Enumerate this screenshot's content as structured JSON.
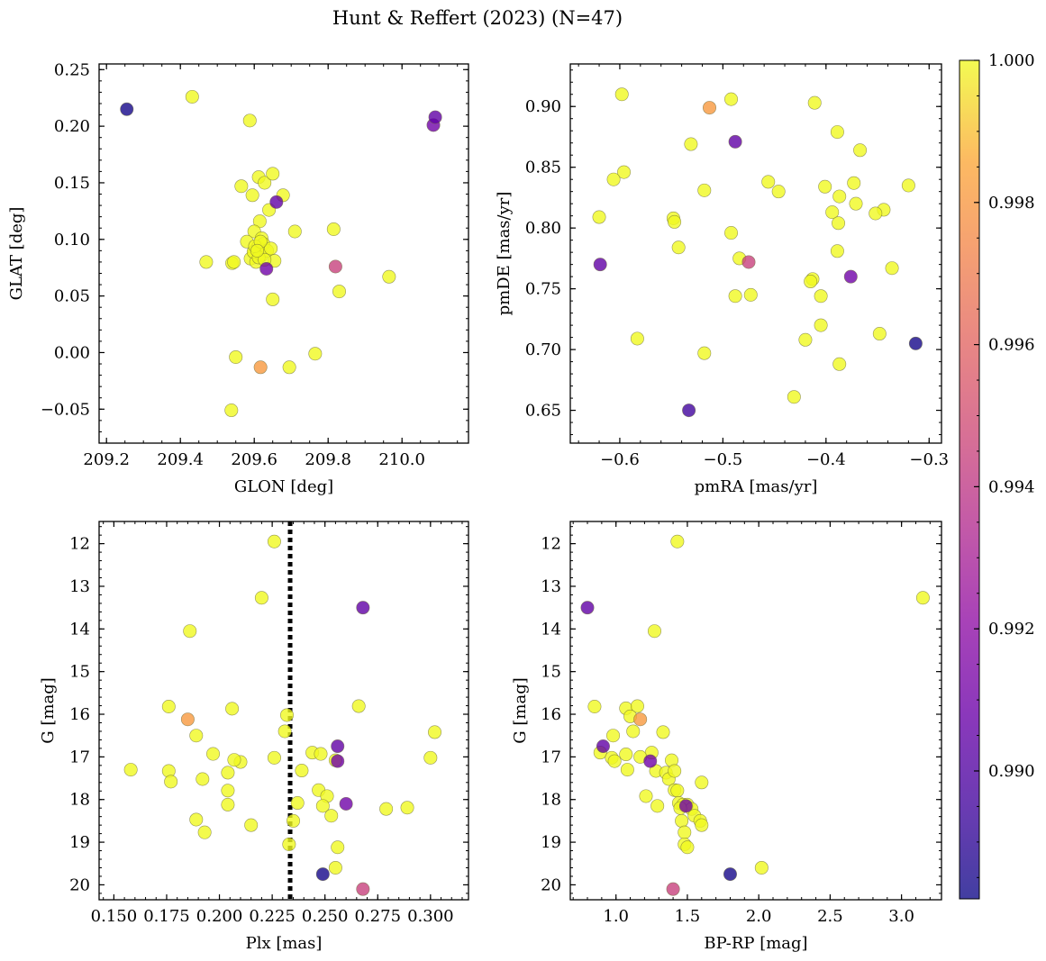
{
  "figure": {
    "title": "Hunt & Reffert (2023) (N=47)"
  },
  "colorbar": {
    "min": 0.9882,
    "max": 1.0,
    "ticks": [
      0.99,
      0.992,
      0.994,
      0.996,
      0.998,
      1.0
    ],
    "tick_labels": [
      "0.990",
      "0.992",
      "0.994",
      "0.996",
      "0.998",
      "1.000"
    ],
    "colormap": "plasma"
  },
  "chart_data": [
    {
      "type": "scatter",
      "title": "",
      "xlabel": "GLON [deg]",
      "ylabel": "GLAT [deg]",
      "xlim": [
        209.18,
        210.18
      ],
      "ylim": [
        -0.08,
        0.255
      ],
      "xticks": [
        209.2,
        209.4,
        209.6,
        209.8,
        210.0
      ],
      "xtick_labels": [
        "209.2",
        "209.4",
        "209.6",
        "209.8",
        "210.0"
      ],
      "xminor": 0.05,
      "yticks": [
        -0.05,
        0.0,
        0.05,
        0.1,
        0.15,
        0.2,
        0.25
      ],
      "ytick_labels": [
        "−0.05",
        "0.00",
        "0.05",
        "0.10",
        "0.15",
        "0.20",
        "0.25"
      ],
      "yminor": 0.01,
      "invert_y": false,
      "points": [
        [
          209.255,
          0.215,
          0.9884
        ],
        [
          209.432,
          0.226,
          1.0
        ],
        [
          209.588,
          0.205,
          1.0
        ],
        [
          209.66,
          0.133,
          0.9905
        ],
        [
          209.82,
          0.076,
          0.9945
        ],
        [
          209.633,
          0.074,
          0.991
        ],
        [
          209.617,
          -0.013,
          0.9982
        ],
        [
          210.085,
          0.201,
          0.991
        ],
        [
          210.09,
          0.208,
          0.9905
        ],
        [
          209.47,
          0.08,
          1.0
        ],
        [
          209.54,
          0.079,
          1.0
        ],
        [
          209.545,
          0.08,
          1.0
        ],
        [
          209.55,
          -0.004,
          1.0
        ],
        [
          209.538,
          -0.051,
          1.0
        ],
        [
          209.565,
          0.147,
          1.0
        ],
        [
          209.595,
          0.139,
          1.0
        ],
        [
          209.612,
          0.155,
          1.0
        ],
        [
          209.628,
          0.15,
          1.0
        ],
        [
          209.65,
          0.158,
          1.0
        ],
        [
          209.678,
          0.139,
          1.0
        ],
        [
          209.64,
          0.126,
          1.0
        ],
        [
          209.615,
          0.116,
          1.0
        ],
        [
          209.6,
          0.107,
          1.0
        ],
        [
          209.58,
          0.098,
          1.0
        ],
        [
          209.62,
          0.101,
          1.0
        ],
        [
          209.61,
          0.093,
          1.0
        ],
        [
          209.625,
          0.096,
          1.0
        ],
        [
          209.6,
          0.088,
          1.0
        ],
        [
          209.59,
          0.083,
          1.0
        ],
        [
          209.605,
          0.08,
          1.0
        ],
        [
          209.62,
          0.086,
          1.0
        ],
        [
          209.635,
          0.09,
          1.0
        ],
        [
          209.645,
          0.092,
          1.0
        ],
        [
          209.655,
          0.081,
          1.0
        ],
        [
          209.65,
          0.047,
          1.0
        ],
        [
          209.71,
          0.107,
          1.0
        ],
        [
          209.815,
          0.109,
          1.0
        ],
        [
          209.83,
          0.054,
          1.0
        ],
        [
          209.965,
          0.067,
          1.0
        ],
        [
          209.765,
          -0.001,
          1.0
        ],
        [
          209.695,
          -0.013,
          1.0
        ],
        [
          209.598,
          0.089,
          1.0
        ],
        [
          209.612,
          0.084,
          1.0
        ],
        [
          209.628,
          0.082,
          1.0
        ],
        [
          209.602,
          0.094,
          1.0
        ],
        [
          209.617,
          0.098,
          1.0
        ],
        [
          209.608,
          0.09,
          1.0
        ]
      ]
    },
    {
      "type": "scatter",
      "title": "",
      "xlabel": "pmRA [mas/yr]",
      "ylabel": "pmDE [mas/yr]",
      "xlim": [
        -0.648,
        -0.288
      ],
      "ylim": [
        0.623,
        0.935
      ],
      "xticks": [
        -0.6,
        -0.5,
        -0.4,
        -0.3
      ],
      "xtick_labels": [
        "−0.6",
        "−0.5",
        "−0.4",
        "−0.3"
      ],
      "xminor": 0.02,
      "yticks": [
        0.65,
        0.7,
        0.75,
        0.8,
        0.85,
        0.9
      ],
      "ytick_labels": [
        "0.65",
        "0.70",
        "0.75",
        "0.80",
        "0.85",
        "0.90"
      ],
      "yminor": 0.01,
      "invert_y": false,
      "points": [
        [
          -0.598,
          0.91,
          1.0
        ],
        [
          -0.492,
          0.906,
          1.0
        ],
        [
          -0.513,
          0.899,
          0.9982
        ],
        [
          -0.411,
          0.903,
          1.0
        ],
        [
          -0.389,
          0.879,
          1.0
        ],
        [
          -0.488,
          0.871,
          0.9905
        ],
        [
          -0.531,
          0.869,
          1.0
        ],
        [
          -0.367,
          0.864,
          1.0
        ],
        [
          -0.596,
          0.846,
          1.0
        ],
        [
          -0.606,
          0.84,
          1.0
        ],
        [
          -0.456,
          0.838,
          1.0
        ],
        [
          -0.373,
          0.837,
          1.0
        ],
        [
          -0.32,
          0.835,
          1.0
        ],
        [
          -0.401,
          0.834,
          1.0
        ],
        [
          -0.518,
          0.831,
          1.0
        ],
        [
          -0.446,
          0.83,
          1.0
        ],
        [
          -0.387,
          0.826,
          1.0
        ],
        [
          -0.371,
          0.82,
          1.0
        ],
        [
          -0.344,
          0.815,
          1.0
        ],
        [
          -0.394,
          0.813,
          1.0
        ],
        [
          -0.352,
          0.812,
          1.0
        ],
        [
          -0.62,
          0.809,
          1.0
        ],
        [
          -0.548,
          0.808,
          1.0
        ],
        [
          -0.547,
          0.805,
          1.0
        ],
        [
          -0.388,
          0.804,
          1.0
        ],
        [
          -0.492,
          0.796,
          1.0
        ],
        [
          -0.543,
          0.784,
          1.0
        ],
        [
          -0.389,
          0.781,
          1.0
        ],
        [
          -0.484,
          0.775,
          1.0
        ],
        [
          -0.475,
          0.772,
          0.9945
        ],
        [
          -0.619,
          0.77,
          0.9905
        ],
        [
          -0.336,
          0.767,
          1.0
        ],
        [
          -0.376,
          0.76,
          0.991
        ],
        [
          -0.413,
          0.758,
          1.0
        ],
        [
          -0.415,
          0.756,
          1.0
        ],
        [
          -0.488,
          0.744,
          1.0
        ],
        [
          -0.473,
          0.745,
          1.0
        ],
        [
          -0.405,
          0.744,
          1.0
        ],
        [
          -0.405,
          0.72,
          1.0
        ],
        [
          -0.348,
          0.713,
          1.0
        ],
        [
          -0.583,
          0.709,
          1.0
        ],
        [
          -0.42,
          0.708,
          1.0
        ],
        [
          -0.313,
          0.705,
          0.9884
        ],
        [
          -0.518,
          0.697,
          1.0
        ],
        [
          -0.387,
          0.688,
          1.0
        ],
        [
          -0.431,
          0.661,
          1.0
        ],
        [
          -0.533,
          0.65,
          0.9895
        ]
      ]
    },
    {
      "type": "scatter",
      "title": "",
      "xlabel": "Plx [mas]",
      "ylabel": "G [mag]",
      "xlim": [
        0.143,
        0.318
      ],
      "ylim": [
        20.35,
        11.48
      ],
      "xticks": [
        0.15,
        0.175,
        0.2,
        0.225,
        0.25,
        0.275,
        0.3
      ],
      "xtick_labels": [
        "0.150",
        "0.175",
        "0.200",
        "0.225",
        "0.250",
        "0.275",
        "0.300"
      ],
      "xminor": 0.005,
      "yticks": [
        12,
        13,
        14,
        15,
        16,
        17,
        18,
        19,
        20
      ],
      "ytick_labels": [
        "12",
        "13",
        "14",
        "15",
        "16",
        "17",
        "18",
        "19",
        "20"
      ],
      "yminor": 0.2,
      "invert_y": true,
      "vline": {
        "x": 0.2335,
        "style": "dotted",
        "color": "#000000"
      },
      "points": [
        [
          0.226,
          11.95,
          1.0
        ],
        [
          0.22,
          13.27,
          1.0
        ],
        [
          0.268,
          13.5,
          0.9905
        ],
        [
          0.186,
          14.05,
          1.0
        ],
        [
          0.176,
          15.82,
          1.0
        ],
        [
          0.185,
          16.12,
          0.9982
        ],
        [
          0.206,
          15.87,
          1.0
        ],
        [
          0.266,
          15.81,
          1.0
        ],
        [
          0.232,
          16.02,
          1.0
        ],
        [
          0.231,
          16.4,
          1.0
        ],
        [
          0.189,
          16.5,
          1.0
        ],
        [
          0.197,
          16.93,
          1.0
        ],
        [
          0.302,
          16.42,
          1.0
        ],
        [
          0.256,
          16.75,
          0.9905
        ],
        [
          0.226,
          17.02,
          1.0
        ],
        [
          0.244,
          16.9,
          1.0
        ],
        [
          0.248,
          16.93,
          1.0
        ],
        [
          0.255,
          17.08,
          1.0
        ],
        [
          0.256,
          17.1,
          0.991
        ],
        [
          0.3,
          17.02,
          1.0
        ],
        [
          0.158,
          17.3,
          1.0
        ],
        [
          0.176,
          17.33,
          1.0
        ],
        [
          0.177,
          17.58,
          1.0
        ],
        [
          0.192,
          17.52,
          1.0
        ],
        [
          0.204,
          17.37,
          1.0
        ],
        [
          0.21,
          17.12,
          1.0
        ],
        [
          0.207,
          17.07,
          1.0
        ],
        [
          0.239,
          17.32,
          1.0
        ],
        [
          0.247,
          17.78,
          1.0
        ],
        [
          0.251,
          17.92,
          1.0
        ],
        [
          0.204,
          17.79,
          1.0
        ],
        [
          0.204,
          18.12,
          1.0
        ],
        [
          0.237,
          18.08,
          1.0
        ],
        [
          0.249,
          18.15,
          1.0
        ],
        [
          0.26,
          18.1,
          0.991
        ],
        [
          0.279,
          18.22,
          1.0
        ],
        [
          0.289,
          18.19,
          1.0
        ],
        [
          0.253,
          18.38,
          1.0
        ],
        [
          0.235,
          18.5,
          1.0
        ],
        [
          0.189,
          18.47,
          1.0
        ],
        [
          0.215,
          18.6,
          1.0
        ],
        [
          0.193,
          18.77,
          1.0
        ],
        [
          0.233,
          19.05,
          1.0
        ],
        [
          0.256,
          19.12,
          1.0
        ],
        [
          0.255,
          19.6,
          1.0
        ],
        [
          0.249,
          19.75,
          0.9884
        ],
        [
          0.268,
          20.1,
          0.9945
        ]
      ]
    },
    {
      "type": "scatter",
      "title": "",
      "xlabel": "BP-RP [mag]",
      "ylabel": "G [mag]",
      "xlim": [
        0.68,
        3.28
      ],
      "ylim": [
        20.35,
        11.48
      ],
      "xticks": [
        1.0,
        1.5,
        2.0,
        2.5,
        3.0
      ],
      "xtick_labels": [
        "1.0",
        "1.5",
        "2.0",
        "2.5",
        "3.0"
      ],
      "xminor": 0.1,
      "yticks": [
        12,
        13,
        14,
        15,
        16,
        17,
        18,
        19,
        20
      ],
      "ytick_labels": [
        "12",
        "13",
        "14",
        "15",
        "16",
        "17",
        "18",
        "19",
        "20"
      ],
      "yminor": 0.2,
      "invert_y": true,
      "points": [
        [
          1.43,
          11.95,
          1.0
        ],
        [
          3.15,
          13.27,
          1.0
        ],
        [
          0.8,
          13.5,
          0.9905
        ],
        [
          1.27,
          14.05,
          1.0
        ],
        [
          0.85,
          15.82,
          1.0
        ],
        [
          1.07,
          15.86,
          1.0
        ],
        [
          1.15,
          15.81,
          1.0
        ],
        [
          1.1,
          16.05,
          1.0
        ],
        [
          1.17,
          16.12,
          0.9982
        ],
        [
          0.98,
          16.5,
          1.0
        ],
        [
          1.12,
          16.4,
          1.0
        ],
        [
          1.33,
          16.42,
          1.0
        ],
        [
          0.91,
          16.75,
          0.9905
        ],
        [
          0.89,
          16.9,
          1.0
        ],
        [
          0.97,
          17.02,
          1.0
        ],
        [
          0.99,
          17.1,
          1.0
        ],
        [
          1.07,
          16.94,
          1.0
        ],
        [
          1.25,
          16.9,
          1.0
        ],
        [
          1.17,
          17.0,
          1.0
        ],
        [
          1.24,
          17.1,
          0.991
        ],
        [
          1.39,
          17.08,
          1.0
        ],
        [
          1.08,
          17.3,
          1.0
        ],
        [
          1.28,
          17.33,
          1.0
        ],
        [
          1.35,
          17.37,
          1.0
        ],
        [
          1.37,
          17.52,
          1.0
        ],
        [
          1.41,
          17.33,
          1.0
        ],
        [
          1.6,
          17.6,
          1.0
        ],
        [
          1.41,
          17.78,
          1.0
        ],
        [
          1.43,
          17.79,
          1.0
        ],
        [
          1.21,
          17.92,
          1.0
        ],
        [
          1.29,
          18.15,
          1.0
        ],
        [
          1.44,
          18.08,
          1.0
        ],
        [
          1.47,
          18.12,
          1.0
        ],
        [
          1.5,
          18.12,
          1.0
        ],
        [
          1.49,
          18.15,
          0.991
        ],
        [
          1.53,
          18.22,
          1.0
        ],
        [
          1.55,
          18.38,
          1.0
        ],
        [
          1.46,
          18.5,
          1.0
        ],
        [
          1.59,
          18.5,
          1.0
        ],
        [
          1.6,
          18.6,
          1.0
        ],
        [
          1.48,
          18.77,
          1.0
        ],
        [
          1.48,
          19.05,
          1.0
        ],
        [
          1.5,
          19.12,
          1.0
        ],
        [
          2.02,
          19.6,
          1.0
        ],
        [
          1.8,
          19.75,
          0.9884
        ],
        [
          1.4,
          20.1,
          0.9945
        ],
        [
          1.45,
          18.2,
          1.0
        ]
      ]
    }
  ]
}
